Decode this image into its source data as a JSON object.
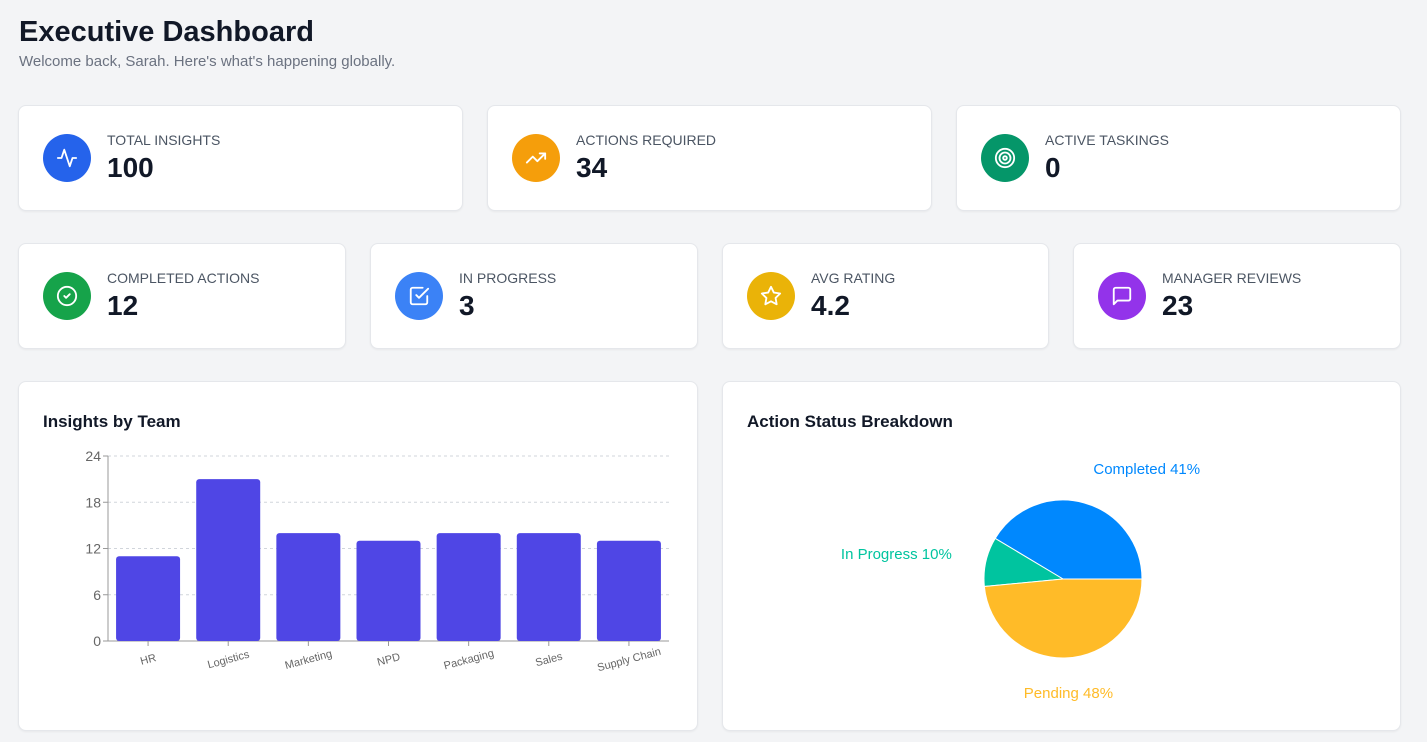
{
  "header": {
    "title": "Executive Dashboard",
    "subtitle": "Welcome back, Sarah. Here's what's happening globally."
  },
  "stats": [
    {
      "label": "Total Insights",
      "value": "100",
      "icon": "activity-icon",
      "color": "#2563eb"
    },
    {
      "label": "Actions Required",
      "value": "34",
      "icon": "trending-up-icon",
      "color": "#f59e0b"
    },
    {
      "label": "Active Taskings",
      "value": "0",
      "icon": "target-icon",
      "color": "#059669"
    },
    {
      "label": "Completed Actions",
      "value": "12",
      "icon": "check-circle-icon",
      "color": "#16a34a"
    },
    {
      "label": "In Progress",
      "value": "3",
      "icon": "check-square-icon",
      "color": "#3b82f6"
    },
    {
      "label": "Avg Rating",
      "value": "4.2",
      "icon": "star-icon",
      "color": "#eab308"
    },
    {
      "label": "Manager Reviews",
      "value": "23",
      "icon": "message-square-icon",
      "color": "#9333ea"
    }
  ],
  "chart_data": [
    {
      "type": "bar",
      "title": "Insights by Team",
      "categories": [
        "HR",
        "Logistics",
        "Marketing",
        "NPD",
        "Packaging",
        "Sales",
        "Supply Chain"
      ],
      "values": [
        11,
        21,
        14,
        13,
        14,
        14,
        13
      ],
      "yticks": [
        "0",
        "6",
        "12",
        "18",
        "24"
      ],
      "ylim": [
        0,
        24
      ],
      "grid": true,
      "color": "#4f46e5"
    },
    {
      "type": "pie",
      "title": "Action Status Breakdown",
      "slices": [
        {
          "label": "Completed 41%",
          "value": 41,
          "color": "#0088fe"
        },
        {
          "label": "In Progress 10%",
          "value": 10,
          "color": "#00c49f"
        },
        {
          "label": "Pending 48%",
          "value": 48,
          "color": "#ffbb28"
        }
      ]
    }
  ]
}
